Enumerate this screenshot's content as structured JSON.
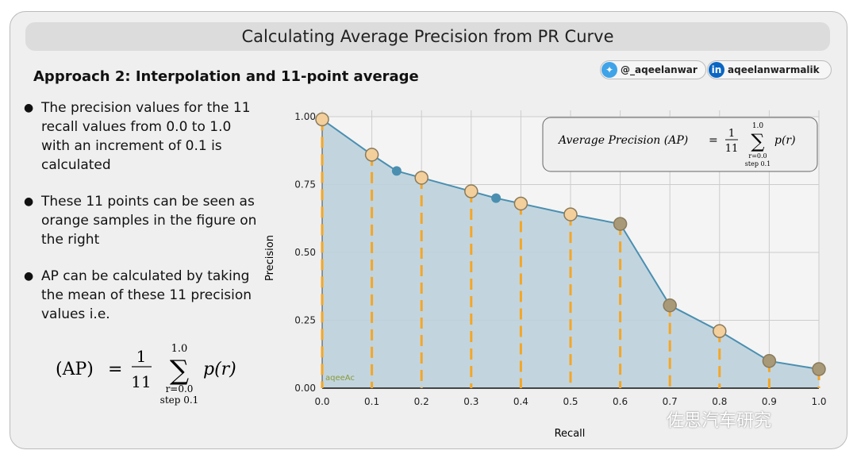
{
  "title": "Calculating Average Precision from PR Curve",
  "subtitle": "Approach 2: Interpolation and 11-point average",
  "badges": {
    "twitter": "@_aqeelanwar",
    "linkedin": "aqeelanwarmalik",
    "linkedin_icon": "in"
  },
  "bullets": [
    "The precision values for the 11 recall values from 0.0 to 1.0 with an increment of 0.1 is calculated",
    "These 11 points can be seen as orange samples in the figure on the right",
    "AP can be calculated by taking the mean of these 11 precision values i.e."
  ],
  "formula_left": {
    "lhs": "(AP)",
    "eq": "=",
    "num": "1",
    "den": "11",
    "sum": "∑",
    "upper": "1.0",
    "lower": "r=0.0",
    "step": "step 0.1",
    "term": "p(r)"
  },
  "formula_box": {
    "lhs": "Average Precision (AP)",
    "eq": "=",
    "num": "1",
    "den": "11",
    "sum": "∑",
    "upper": "1.0",
    "lower": "r=0.0",
    "step": "step 0.1",
    "term": "p(r)"
  },
  "chart_watermark": "aqeeAc",
  "watermark": "佐思汽车研究",
  "chart_data": {
    "type": "area",
    "xlabel": "Recall",
    "ylabel": "Precision",
    "xlim": [
      0,
      1
    ],
    "ylim": [
      0,
      1
    ],
    "xticks": [
      "0.0",
      "0.1",
      "0.2",
      "0.3",
      "0.4",
      "0.5",
      "0.6",
      "0.7",
      "0.8",
      "0.9",
      "1.0"
    ],
    "yticks": [
      "0.00",
      "0.25",
      "0.50",
      "0.75",
      "1.00"
    ],
    "grid": true,
    "curve": {
      "x": [
        0,
        0.1,
        0.15,
        0.2,
        0.3,
        0.35,
        0.4,
        0.5,
        0.6,
        0.7,
        0.8,
        0.9,
        1.0
      ],
      "y": [
        0.99,
        0.86,
        0.8,
        0.775,
        0.725,
        0.7,
        0.68,
        0.64,
        0.605,
        0.305,
        0.21,
        0.1,
        0.07
      ]
    },
    "samples": {
      "x": [
        0,
        0.1,
        0.2,
        0.3,
        0.4,
        0.5,
        0.6,
        0.7,
        0.8,
        0.9,
        1.0
      ],
      "y": [
        0.99,
        0.86,
        0.775,
        0.725,
        0.68,
        0.64,
        0.605,
        0.305,
        0.21,
        0.1,
        0.07
      ]
    },
    "colors": {
      "line": "#4a8fb0",
      "fill": "#bcd2dd",
      "sample": "#f3cf9c",
      "dash": "#f5a623"
    }
  }
}
